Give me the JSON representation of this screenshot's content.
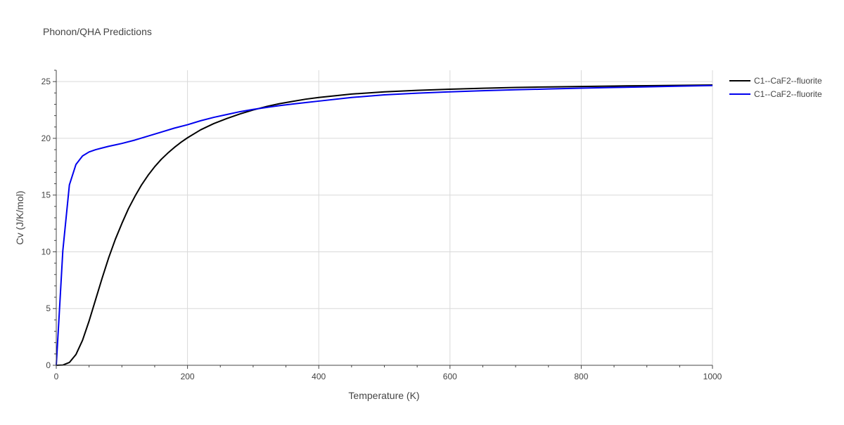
{
  "chart_data": {
    "type": "line",
    "title": "Phonon/QHA Predictions",
    "xlabel": "Temperature (K)",
    "ylabel": "Cv (J/K/mol)",
    "xlim": [
      0,
      1000
    ],
    "ylim": [
      0,
      26
    ],
    "xticks": [
      0,
      200,
      400,
      600,
      800,
      1000
    ],
    "yticks": [
      0,
      5,
      10,
      15,
      20,
      25
    ],
    "xminor_step": 50,
    "yminor_step": 1,
    "grid": true,
    "legend_position": "top-right",
    "series": [
      {
        "name": "C1--CaF2--fluorite",
        "color": "#000000",
        "x": [
          0,
          10,
          20,
          30,
          40,
          50,
          60,
          70,
          80,
          90,
          100,
          110,
          120,
          130,
          140,
          150,
          160,
          170,
          180,
          190,
          200,
          220,
          240,
          260,
          280,
          300,
          320,
          340,
          360,
          380,
          400,
          450,
          500,
          550,
          600,
          650,
          700,
          750,
          800,
          850,
          900,
          950,
          1000
        ],
        "y": [
          0,
          0.02,
          0.25,
          0.95,
          2.2,
          3.9,
          5.8,
          7.7,
          9.5,
          11.1,
          12.5,
          13.8,
          14.9,
          15.9,
          16.75,
          17.5,
          18.15,
          18.7,
          19.2,
          19.65,
          20.05,
          20.75,
          21.3,
          21.75,
          22.15,
          22.5,
          22.8,
          23.05,
          23.25,
          23.45,
          23.6,
          23.9,
          24.1,
          24.23,
          24.33,
          24.41,
          24.48,
          24.53,
          24.57,
          24.61,
          24.64,
          24.67,
          24.7
        ]
      },
      {
        "name": "C1--CaF2--fluorite",
        "color": "#0000ee",
        "x": [
          0,
          5,
          10,
          20,
          30,
          40,
          50,
          60,
          70,
          80,
          90,
          100,
          120,
          140,
          160,
          180,
          200,
          220,
          240,
          260,
          280,
          300,
          320,
          340,
          360,
          380,
          400,
          450,
          500,
          550,
          600,
          650,
          700,
          750,
          800,
          850,
          900,
          950,
          1000
        ],
        "y": [
          0,
          5.0,
          10.1,
          15.9,
          17.7,
          18.45,
          18.8,
          19.0,
          19.15,
          19.3,
          19.42,
          19.55,
          19.85,
          20.2,
          20.55,
          20.9,
          21.2,
          21.55,
          21.85,
          22.1,
          22.35,
          22.55,
          22.72,
          22.88,
          23.02,
          23.15,
          23.28,
          23.6,
          23.83,
          23.98,
          24.1,
          24.2,
          24.28,
          24.35,
          24.42,
          24.48,
          24.54,
          24.6,
          24.65
        ]
      }
    ]
  }
}
